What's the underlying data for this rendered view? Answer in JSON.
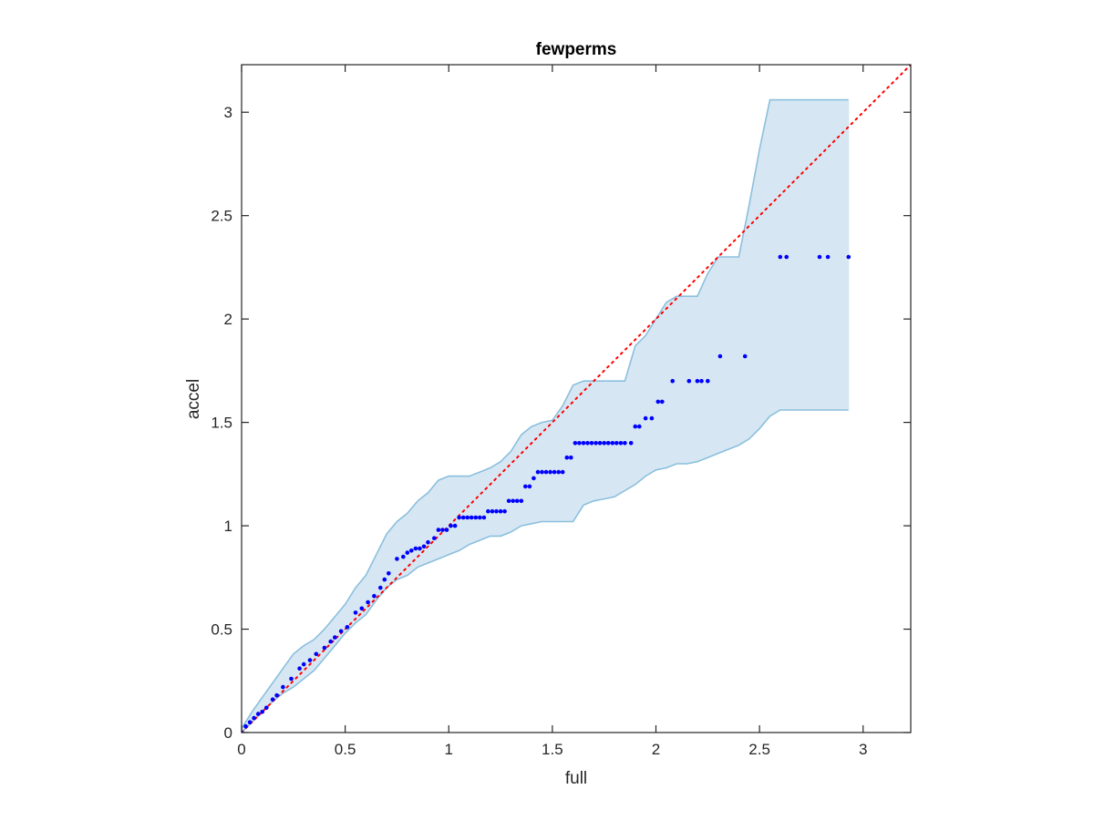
{
  "chart_data": {
    "type": "scatter",
    "title": "fewperms",
    "xlabel": "full",
    "ylabel": "accel",
    "xlim": [
      0,
      3.23
    ],
    "ylim": [
      0,
      3.23
    ],
    "xticks": [
      0,
      0.5,
      1,
      1.5,
      2,
      2.5,
      3
    ],
    "yticks": [
      0,
      0.5,
      1,
      1.5,
      2,
      2.5,
      3
    ],
    "xtick_labels": [
      "0",
      "0.5",
      "1",
      "1.5",
      "2",
      "2.5",
      "3"
    ],
    "ytick_labels": [
      "0",
      "0.5",
      "1",
      "1.5",
      "2",
      "2.5",
      "3"
    ],
    "grid": false,
    "colors": {
      "band_fill": "#d6e7f3",
      "band_edge": "#8bbfdd",
      "points": "#0000ff",
      "reference_line": "#ff0000",
      "axes": "#262626"
    },
    "band": {
      "x": [
        0,
        0.05,
        0.1,
        0.15,
        0.2,
        0.25,
        0.3,
        0.35,
        0.4,
        0.45,
        0.5,
        0.55,
        0.6,
        0.65,
        0.7,
        0.75,
        0.8,
        0.85,
        0.9,
        0.95,
        1.0,
        1.05,
        1.1,
        1.15,
        1.2,
        1.25,
        1.3,
        1.35,
        1.4,
        1.45,
        1.5,
        1.55,
        1.6,
        1.65,
        1.7,
        1.75,
        1.8,
        1.85,
        1.9,
        1.95,
        2.0,
        2.05,
        2.1,
        2.15,
        2.2,
        2.25,
        2.3,
        2.35,
        2.4,
        2.45,
        2.5,
        2.55,
        2.6,
        2.65,
        2.7,
        2.75,
        2.8,
        2.85,
        2.9,
        2.93
      ],
      "upper": [
        0.02,
        0.1,
        0.17,
        0.24,
        0.31,
        0.38,
        0.42,
        0.45,
        0.5,
        0.56,
        0.62,
        0.7,
        0.76,
        0.86,
        0.96,
        1.02,
        1.06,
        1.12,
        1.16,
        1.22,
        1.24,
        1.24,
        1.24,
        1.26,
        1.28,
        1.31,
        1.36,
        1.44,
        1.48,
        1.5,
        1.51,
        1.58,
        1.68,
        1.7,
        1.7,
        1.7,
        1.7,
        1.7,
        1.87,
        1.92,
        2.0,
        2.08,
        2.11,
        2.11,
        2.11,
        2.22,
        2.3,
        2.3,
        2.3,
        2.55,
        2.82,
        3.06,
        3.06,
        3.06,
        3.06,
        3.06,
        3.06,
        3.06,
        3.06,
        3.06
      ],
      "lower": [
        0.0,
        0.05,
        0.1,
        0.15,
        0.19,
        0.22,
        0.26,
        0.3,
        0.36,
        0.42,
        0.48,
        0.53,
        0.57,
        0.64,
        0.7,
        0.74,
        0.76,
        0.8,
        0.82,
        0.84,
        0.86,
        0.88,
        0.91,
        0.93,
        0.95,
        0.95,
        0.97,
        1.0,
        1.01,
        1.02,
        1.02,
        1.02,
        1.02,
        1.1,
        1.12,
        1.13,
        1.14,
        1.17,
        1.2,
        1.24,
        1.27,
        1.28,
        1.3,
        1.3,
        1.31,
        1.33,
        1.35,
        1.37,
        1.39,
        1.42,
        1.47,
        1.53,
        1.56,
        1.56,
        1.56,
        1.56,
        1.56,
        1.56,
        1.56,
        1.56
      ]
    },
    "reference_line": {
      "style": "dotted",
      "x": [
        0,
        3.23
      ],
      "y": [
        0,
        3.23
      ]
    },
    "points": {
      "x": [
        0.0,
        0.02,
        0.04,
        0.06,
        0.08,
        0.1,
        0.12,
        0.15,
        0.17,
        0.2,
        0.24,
        0.28,
        0.3,
        0.33,
        0.36,
        0.4,
        0.43,
        0.45,
        0.48,
        0.51,
        0.55,
        0.58,
        0.61,
        0.64,
        0.67,
        0.69,
        0.71,
        0.75,
        0.78,
        0.8,
        0.82,
        0.84,
        0.86,
        0.88,
        0.9,
        0.93,
        0.95,
        0.97,
        0.99,
        1.01,
        1.03,
        1.05,
        1.07,
        1.09,
        1.11,
        1.13,
        1.15,
        1.17,
        1.19,
        1.21,
        1.23,
        1.25,
        1.27,
        1.29,
        1.31,
        1.33,
        1.35,
        1.37,
        1.39,
        1.41,
        1.43,
        1.45,
        1.47,
        1.49,
        1.51,
        1.53,
        1.55,
        1.57,
        1.59,
        1.61,
        1.63,
        1.65,
        1.67,
        1.69,
        1.71,
        1.73,
        1.75,
        1.77,
        1.79,
        1.81,
        1.83,
        1.85,
        1.88,
        1.9,
        1.92,
        1.95,
        1.98,
        2.01,
        2.03,
        2.08,
        2.16,
        2.2,
        2.22,
        2.25,
        2.31,
        2.43,
        2.6,
        2.63,
        2.79,
        2.83,
        2.93
      ],
      "y": [
        0.0,
        0.03,
        0.05,
        0.07,
        0.09,
        0.1,
        0.12,
        0.16,
        0.18,
        0.22,
        0.26,
        0.31,
        0.33,
        0.35,
        0.38,
        0.41,
        0.44,
        0.46,
        0.49,
        0.51,
        0.58,
        0.6,
        0.63,
        0.66,
        0.7,
        0.74,
        0.77,
        0.84,
        0.85,
        0.87,
        0.88,
        0.89,
        0.89,
        0.9,
        0.92,
        0.94,
        0.98,
        0.98,
        0.98,
        1.0,
        1.0,
        1.04,
        1.04,
        1.04,
        1.04,
        1.04,
        1.04,
        1.04,
        1.07,
        1.07,
        1.07,
        1.07,
        1.07,
        1.12,
        1.12,
        1.12,
        1.12,
        1.19,
        1.19,
        1.23,
        1.26,
        1.26,
        1.26,
        1.26,
        1.26,
        1.26,
        1.26,
        1.33,
        1.33,
        1.4,
        1.4,
        1.4,
        1.4,
        1.4,
        1.4,
        1.4,
        1.4,
        1.4,
        1.4,
        1.4,
        1.4,
        1.4,
        1.4,
        1.48,
        1.48,
        1.52,
        1.52,
        1.6,
        1.6,
        1.7,
        1.7,
        1.7,
        1.7,
        1.7,
        1.82,
        1.82,
        2.3,
        2.3,
        2.3,
        2.3,
        2.3
      ]
    }
  }
}
